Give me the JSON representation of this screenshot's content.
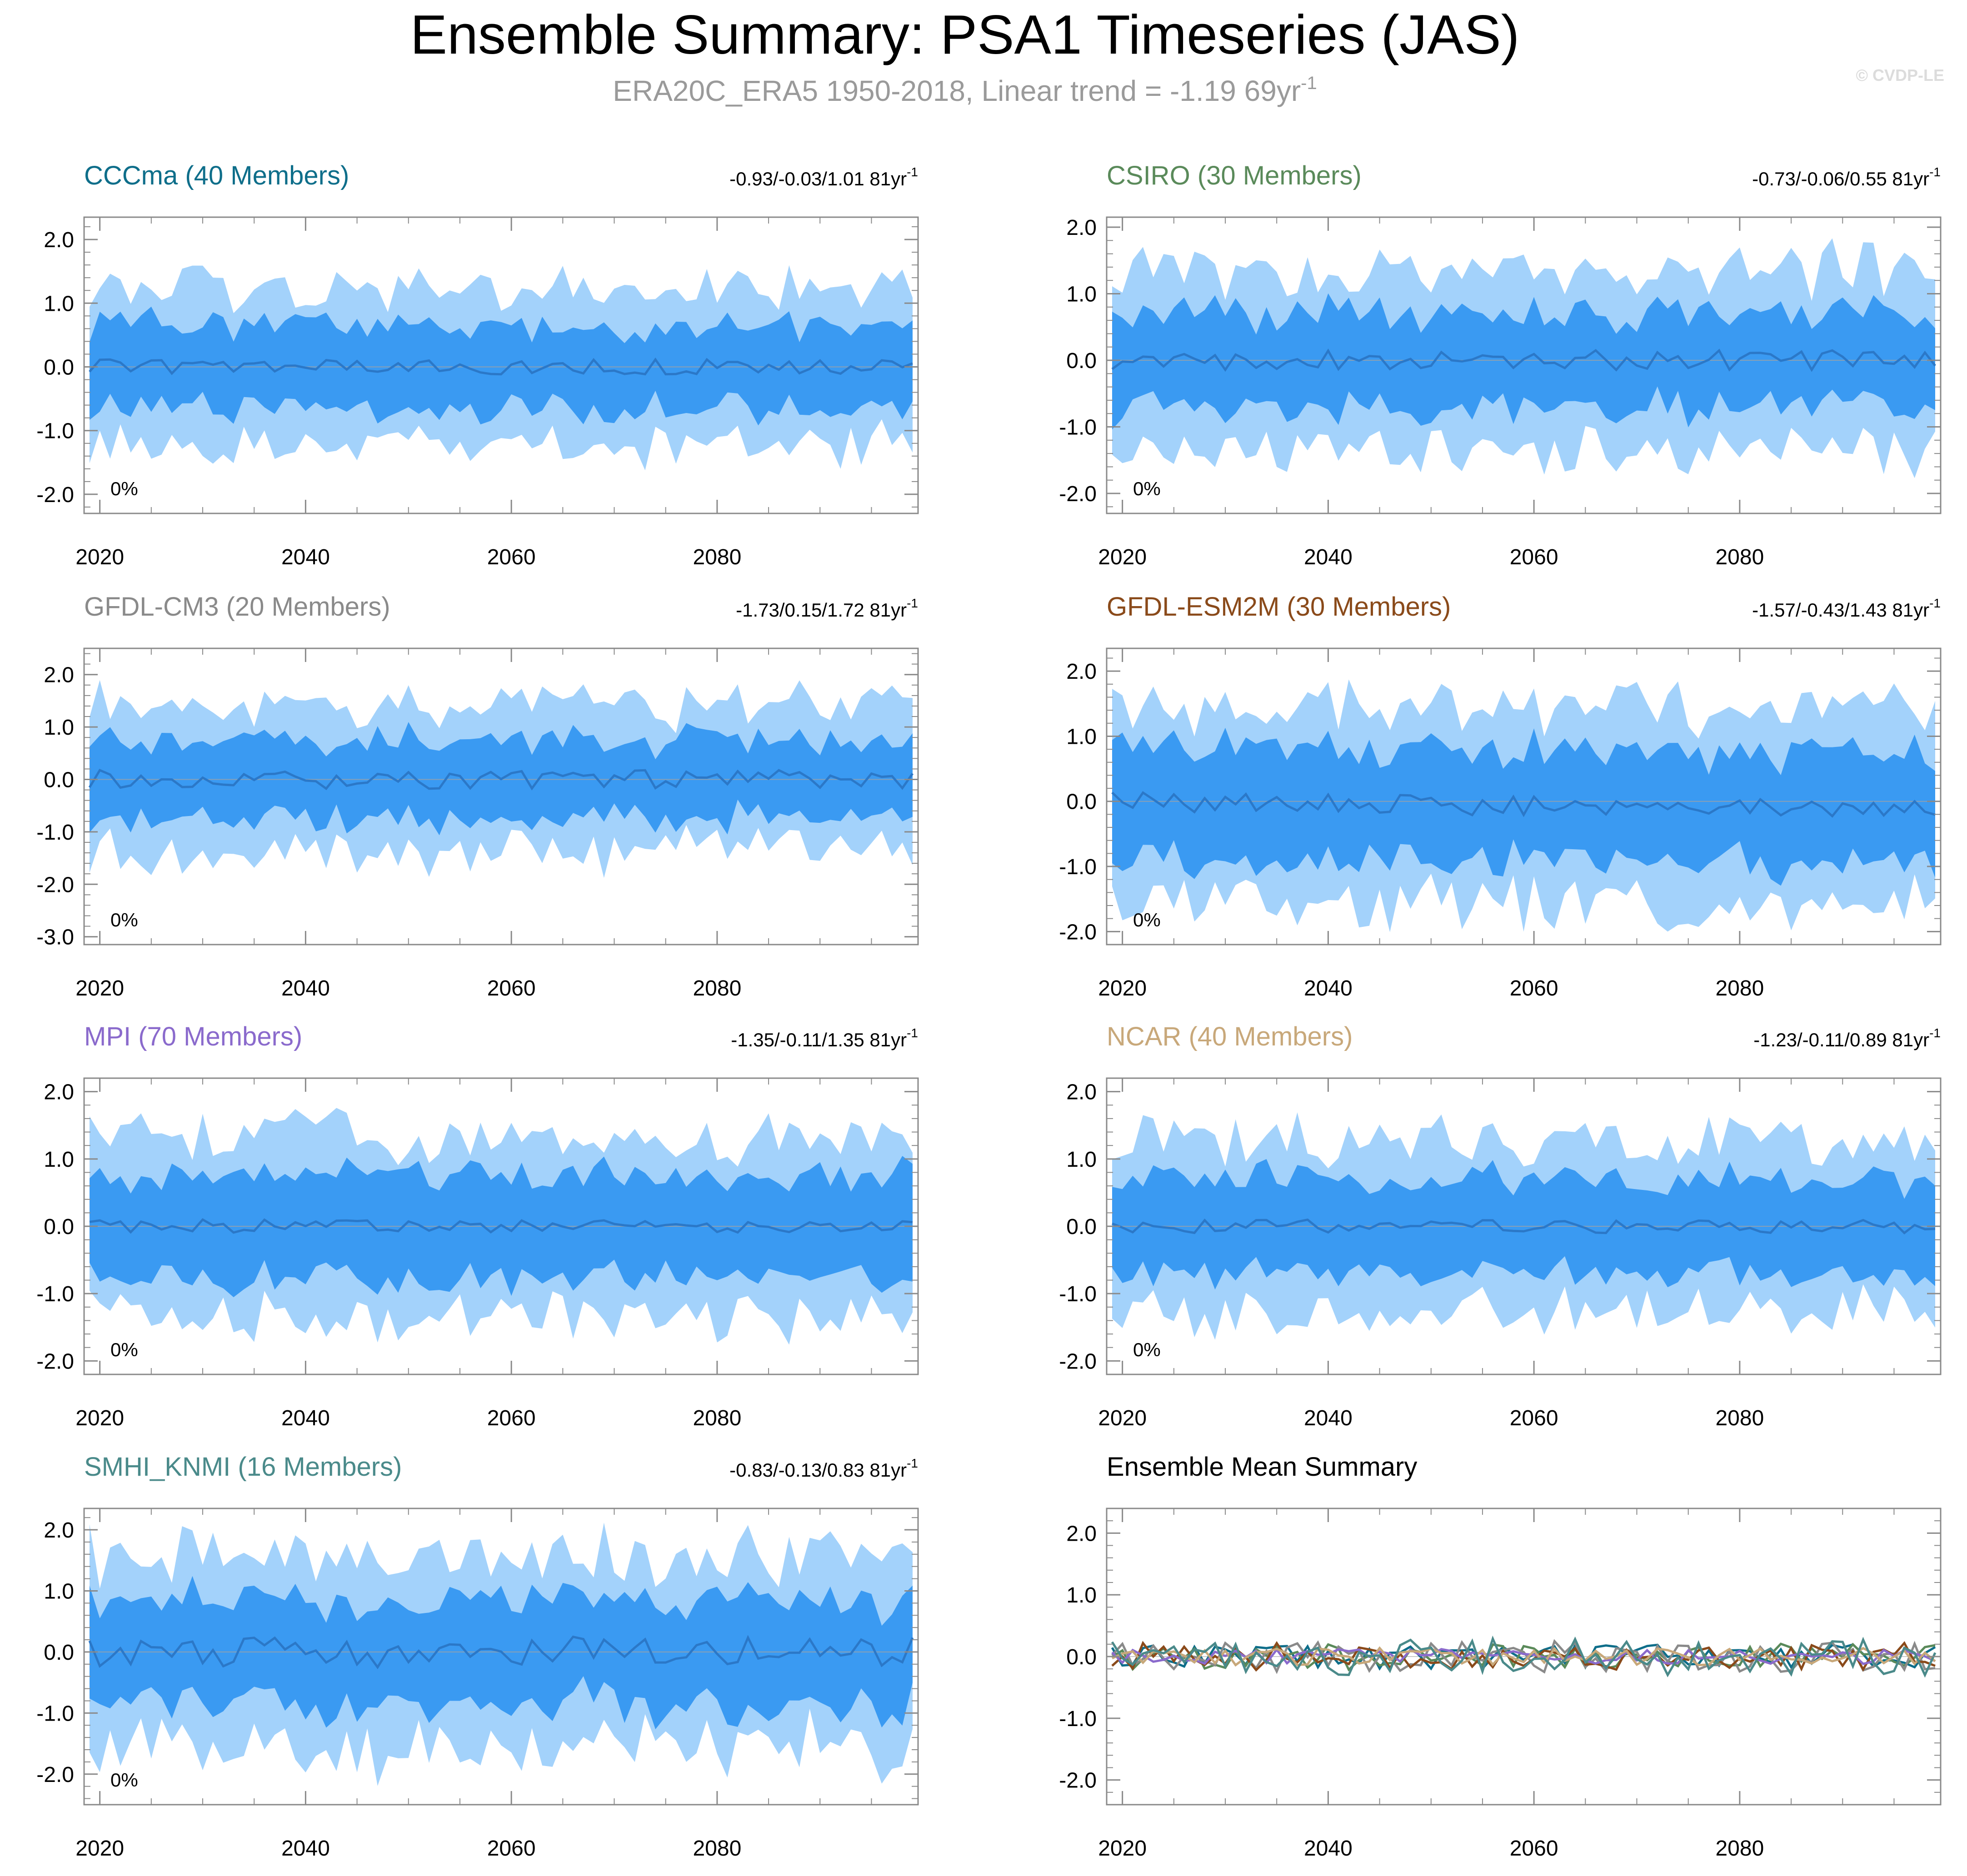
{
  "title": "Ensemble Summary: PSA1 Timeseries (JAS)",
  "subtitle": "ERA20C_ERA5 1950-2018, Linear trend = -1.19 69yr",
  "subtitle_sup": "-1",
  "copyright": "© CVDP-LE",
  "colors": {
    "band_outer": "#a3d2fb",
    "band_inner": "#3a9af2",
    "mean_line": "#2b78c8",
    "zero_line": "#8aa0b4",
    "axis": "#8a8a8a",
    "title_gray": "#9a9a9a"
  },
  "chart_data": [
    {
      "id": "cccma",
      "type": "area",
      "title": "CCCma (40 Members)",
      "title_color": "#0e6e8a",
      "trend_label": "-0.93/-0.03/1.01 81yr",
      "trend_sup": "-1",
      "pct_label": "0%",
      "x_range": [
        2019,
        2099
      ],
      "ylim": [
        -2.3,
        2.35
      ],
      "yticks": [
        -2.0,
        -1.0,
        0.0,
        1.0,
        2.0
      ],
      "ytick_labels": [
        "-2.0",
        "-1.0",
        "0.0",
        "1.0",
        "2.0"
      ],
      "xticks": [
        2020,
        2040,
        2060,
        2080
      ],
      "xtick_labels": [
        "2020",
        "2040",
        "2060",
        "2080"
      ],
      "seed": 11,
      "amp_outer": 1.2,
      "amp_inner": 0.65,
      "mean_amp": 0.12,
      "mean_shift": 0.0
    },
    {
      "id": "csiro",
      "type": "area",
      "title": "CSIRO (30 Members)",
      "title_color": "#5a8a5a",
      "trend_label": "-0.73/-0.06/0.55 81yr",
      "trend_sup": "-1",
      "pct_label": "0%",
      "x_range": [
        2019,
        2099
      ],
      "ylim": [
        -2.3,
        2.15
      ],
      "yticks": [
        -2.0,
        -1.0,
        0.0,
        1.0,
        2.0
      ],
      "ytick_labels": [
        "-2.0",
        "-1.0",
        "0.0",
        "1.0",
        "2.0"
      ],
      "xticks": [
        2020,
        2040,
        2060,
        2080
      ],
      "xtick_labels": [
        "2020",
        "2040",
        "2060",
        "2080"
      ],
      "seed": 23,
      "amp_outer": 1.3,
      "amp_inner": 0.7,
      "mean_amp": 0.15,
      "mean_shift": 0.0
    },
    {
      "id": "gfdlcm3",
      "type": "area",
      "title": "GFDL-CM3 (20 Members)",
      "title_color": "#8a8a8a",
      "trend_label": "-1.73/0.15/1.72 81yr",
      "trend_sup": "-1",
      "pct_label": "0%",
      "x_range": [
        2019,
        2099
      ],
      "ylim": [
        -3.15,
        2.5
      ],
      "yticks": [
        -3.0,
        -2.0,
        -1.0,
        0.0,
        1.0,
        2.0
      ],
      "ytick_labels": [
        "-3.0",
        "-2.0",
        "-1.0",
        "0.0",
        "1.0",
        "2.0"
      ],
      "xticks": [
        2020,
        2040,
        2060,
        2080
      ],
      "xtick_labels": [
        "2020",
        "2040",
        "2060",
        "2080"
      ],
      "seed": 37,
      "amp_outer": 1.35,
      "amp_inner": 0.75,
      "mean_amp": 0.18,
      "mean_shift": 0.0
    },
    {
      "id": "gfdlesm2m",
      "type": "area",
      "title": "GFDL-ESM2M (30 Members)",
      "title_color": "#8a4a1a",
      "trend_label": "-1.57/-0.43/1.43 81yr",
      "trend_sup": "-1",
      "pct_label": "0%",
      "x_range": [
        2019,
        2099
      ],
      "ylim": [
        -2.2,
        2.35
      ],
      "yticks": [
        -2.0,
        -1.0,
        0.0,
        1.0,
        2.0
      ],
      "ytick_labels": [
        "-2.0",
        "-1.0",
        "0.0",
        "1.0",
        "2.0"
      ],
      "xticks": [
        2020,
        2040,
        2060,
        2080
      ],
      "xtick_labels": [
        "2020",
        "2040",
        "2060",
        "2080"
      ],
      "seed": 49,
      "amp_outer": 1.45,
      "amp_inner": 0.85,
      "mean_amp": 0.15,
      "mean_shift": -0.15
    },
    {
      "id": "mpi",
      "type": "area",
      "title": "MPI (70 Members)",
      "title_color": "#8a6acc",
      "trend_label": "-1.35/-0.11/1.35 81yr",
      "trend_sup": "-1",
      "pct_label": "0%",
      "x_range": [
        2019,
        2099
      ],
      "ylim": [
        -2.2,
        2.2
      ],
      "yticks": [
        -2.0,
        -1.0,
        0.0,
        1.0,
        2.0
      ],
      "ytick_labels": [
        "-2.0",
        "-1.0",
        "0.0",
        "1.0",
        "2.0"
      ],
      "xticks": [
        2020,
        2040,
        2060,
        2080
      ],
      "xtick_labels": [
        "2020",
        "2040",
        "2060",
        "2080"
      ],
      "seed": 61,
      "amp_outer": 1.3,
      "amp_inner": 0.75,
      "mean_amp": 0.1,
      "mean_shift": 0.0
    },
    {
      "id": "ncar",
      "type": "area",
      "title": "NCAR (40 Members)",
      "title_color": "#c8a87a",
      "trend_label": "-1.23/-0.11/0.89 81yr",
      "trend_sup": "-1",
      "pct_label": "0%",
      "x_range": [
        2019,
        2099
      ],
      "ylim": [
        -2.2,
        2.2
      ],
      "yticks": [
        -2.0,
        -1.0,
        0.0,
        1.0,
        2.0
      ],
      "ytick_labels": [
        "-2.0",
        "-1.0",
        "0.0",
        "1.0",
        "2.0"
      ],
      "xticks": [
        2020,
        2040,
        2060,
        2080
      ],
      "xtick_labels": [
        "2020",
        "2040",
        "2060",
        "2080"
      ],
      "seed": 73,
      "amp_outer": 1.25,
      "amp_inner": 0.7,
      "mean_amp": 0.1,
      "mean_shift": 0.0
    },
    {
      "id": "smhiknmi",
      "type": "area",
      "title": "SMHI_KNMI (16 Members)",
      "title_color": "#4a8a8a",
      "trend_label": "-0.83/-0.13/0.83 81yr",
      "trend_sup": "-1",
      "pct_label": "0%",
      "x_range": [
        2019,
        2099
      ],
      "ylim": [
        -2.5,
        2.35
      ],
      "yticks": [
        -2.0,
        -1.0,
        0.0,
        1.0,
        2.0
      ],
      "ytick_labels": [
        "-2.0",
        "-1.0",
        "0.0",
        "1.0",
        "2.0"
      ],
      "xticks": [
        2020,
        2040,
        2060,
        2080
      ],
      "xtick_labels": [
        "2020",
        "2040",
        "2060",
        "2080"
      ],
      "seed": 89,
      "amp_outer": 1.5,
      "amp_inner": 0.85,
      "mean_amp": 0.25,
      "mean_shift": 0.0
    },
    {
      "id": "ensmean",
      "type": "line",
      "title": "Ensemble Mean Summary",
      "title_color": "#000000",
      "trend_label": "",
      "trend_sup": "",
      "pct_label": "",
      "x_range": [
        2019,
        2099
      ],
      "ylim": [
        -2.4,
        2.4
      ],
      "yticks": [
        -2.0,
        -1.0,
        0.0,
        1.0,
        2.0
      ],
      "ytick_labels": [
        "-2.0",
        "-1.0",
        "0.0",
        "1.0",
        "2.0"
      ],
      "xticks": [
        2020,
        2040,
        2060,
        2080
      ],
      "xtick_labels": [
        "2020",
        "2040",
        "2060",
        "2080"
      ],
      "series": [
        {
          "name": "CCCma",
          "color": "#0e6e8a",
          "seed": 11,
          "amp": 0.2
        },
        {
          "name": "CSIRO",
          "color": "#5a8a5a",
          "seed": 23,
          "amp": 0.22
        },
        {
          "name": "GFDL-CM3",
          "color": "#8a8a8a",
          "seed": 37,
          "amp": 0.25
        },
        {
          "name": "GFDL-ESM2M",
          "color": "#8a4a1a",
          "seed": 49,
          "amp": 0.22
        },
        {
          "name": "MPI",
          "color": "#8a6acc",
          "seed": 61,
          "amp": 0.12
        },
        {
          "name": "NCAR",
          "color": "#c8a87a",
          "seed": 73,
          "amp": 0.14
        },
        {
          "name": "SMHI_KNMI",
          "color": "#4a8a8a",
          "seed": 89,
          "amp": 0.3
        }
      ]
    }
  ]
}
